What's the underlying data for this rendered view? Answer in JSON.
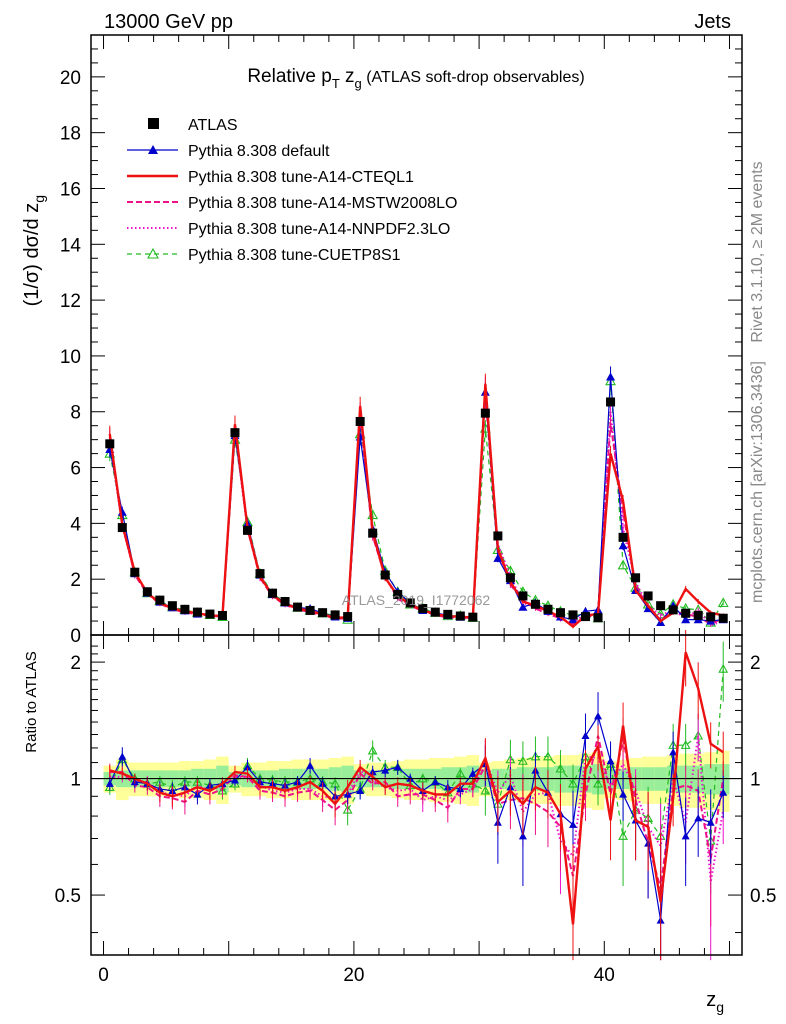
{
  "header": {
    "left": "13000 GeV pp",
    "right": "Jets"
  },
  "side": {
    "rivet": "Rivet 3.1.10, ≥ 2M events",
    "mcplots": "mcplots.cern.ch [arXiv:1306.3436]"
  },
  "watermark": "ATLAS_2019_I1772062",
  "colors": {
    "atlas": "#000000",
    "default": "#0000cc",
    "cteql1": "#ee1111",
    "mstw": "#ee1188",
    "nnpdf": "#ee11cc",
    "cuetp": "#22bb22",
    "band_inner": "#99ee99",
    "band_outer": "#ffff99"
  },
  "chart_data": [
    {
      "type": "line",
      "title_parts": {
        "main": "Relative p",
        "sub": "T",
        "mid": " z",
        "sub2": "g",
        "rest": " (ATLAS soft-drop observables)"
      },
      "ylabel": "(1/σ) dσ/d z",
      "ylabel_sub": "g",
      "xlim": [
        -1,
        51
      ],
      "ylim": [
        0,
        21.5
      ],
      "yticks": [
        0,
        2,
        4,
        6,
        8,
        10,
        12,
        14,
        16,
        18,
        20
      ],
      "x": [
        0.5,
        1.5,
        2.5,
        3.5,
        4.5,
        5.5,
        6.5,
        7.5,
        8.5,
        9.5,
        10.5,
        11.5,
        12.5,
        13.5,
        14.5,
        15.5,
        16.5,
        17.5,
        18.5,
        19.5,
        20.5,
        21.5,
        22.5,
        23.5,
        24.5,
        25.5,
        26.5,
        27.5,
        28.5,
        29.5,
        30.5,
        31.5,
        32.5,
        33.5,
        34.5,
        35.5,
        36.5,
        37.5,
        38.5,
        39.5,
        40.5,
        41.5,
        42.5,
        43.5,
        44.5,
        45.5,
        46.5,
        47.5,
        48.5,
        49.5
      ],
      "series": [
        {
          "name": "ATLAS",
          "key": "atlas",
          "style": "marker-square",
          "values": [
            6.85,
            3.85,
            2.25,
            1.55,
            1.25,
            1.05,
            0.92,
            0.82,
            0.75,
            0.7,
            7.25,
            3.75,
            2.2,
            1.5,
            1.2,
            1.0,
            0.88,
            0.8,
            0.72,
            0.66,
            7.65,
            3.65,
            2.15,
            1.45,
            1.15,
            0.95,
            0.82,
            0.74,
            0.68,
            0.64,
            7.95,
            3.55,
            2.05,
            1.4,
            1.1,
            0.92,
            0.8,
            0.72,
            0.66,
            0.62,
            8.35,
            3.5,
            2.05,
            1.4,
            1.05,
            0.9,
            0.78,
            0.7,
            0.65,
            0.6
          ]
        },
        {
          "name": "Pythia 8.308 default",
          "key": "default",
          "style": "solid-triangle",
          "values": [
            6.65,
            4.4,
            2.2,
            1.5,
            1.18,
            0.98,
            0.87,
            0.75,
            0.72,
            0.68,
            7.15,
            4.0,
            2.15,
            1.45,
            1.15,
            0.98,
            0.95,
            0.78,
            0.65,
            0.6,
            7.1,
            3.8,
            2.25,
            1.55,
            1.15,
            0.88,
            0.8,
            0.7,
            0.64,
            0.66,
            8.7,
            2.75,
            1.95,
            1.0,
            1.15,
            0.85,
            0.65,
            0.55,
            0.85,
            0.9,
            9.25,
            3.2,
            1.6,
            0.95,
            0.45,
            1.05,
            0.55,
            0.55,
            0.5,
            0.55
          ]
        },
        {
          "name": "Pythia 8.308 tune-A14-CTEQL1",
          "key": "cteql1",
          "style": "solid",
          "values": [
            7.2,
            3.95,
            2.25,
            1.5,
            1.15,
            0.95,
            0.85,
            0.78,
            0.7,
            0.68,
            7.55,
            3.85,
            2.1,
            1.42,
            1.12,
            0.95,
            0.86,
            0.74,
            0.62,
            0.63,
            8.2,
            3.7,
            2.05,
            1.4,
            1.1,
            0.88,
            0.75,
            0.67,
            0.66,
            0.62,
            9.0,
            3.1,
            1.9,
            1.2,
            1.05,
            0.85,
            0.65,
            0.3,
            0.7,
            0.75,
            6.5,
            4.8,
            1.6,
            1.05,
            0.5,
            0.8,
            1.65,
            1.2,
            0.8,
            0.7
          ]
        },
        {
          "name": "Pythia 8.308 tune-A14-MSTW2008LO",
          "key": "mstw",
          "style": "dashed",
          "values": [
            7.1,
            4.0,
            2.15,
            1.48,
            1.12,
            0.93,
            0.8,
            0.76,
            0.68,
            0.66,
            7.4,
            3.8,
            2.05,
            1.38,
            1.08,
            0.92,
            0.82,
            0.7,
            0.6,
            0.58,
            7.9,
            3.55,
            2.1,
            1.3,
            1.05,
            0.86,
            0.72,
            0.62,
            0.64,
            0.6,
            8.6,
            3.05,
            1.8,
            1.25,
            0.95,
            0.75,
            0.6,
            0.4,
            0.6,
            0.8,
            7.6,
            4.4,
            1.8,
            0.95,
            0.55,
            0.85,
            0.75,
            0.65,
            0.4,
            0.6
          ]
        },
        {
          "name": "Pythia 8.308 tune-A14-NNPDF2.3LO",
          "key": "nnpdf",
          "style": "dotted",
          "values": [
            6.95,
            3.9,
            2.2,
            1.52,
            1.15,
            0.96,
            0.83,
            0.79,
            0.7,
            0.67,
            7.3,
            3.78,
            2.12,
            1.4,
            1.1,
            0.94,
            0.83,
            0.72,
            0.64,
            0.6,
            8.0,
            3.6,
            2.05,
            1.35,
            1.08,
            0.84,
            0.74,
            0.65,
            0.62,
            0.6,
            8.9,
            3.25,
            2.1,
            1.15,
            1.0,
            0.85,
            0.55,
            0.45,
            0.75,
            0.7,
            8.0,
            3.8,
            1.9,
            1.05,
            0.7,
            0.9,
            0.6,
            0.9,
            0.35,
            0.5
          ]
        },
        {
          "name": "Pythia 8.308 tune-CUETP8S1",
          "key": "cuetp",
          "style": "dashed-opentriangle",
          "values": [
            6.5,
            4.3,
            2.25,
            1.5,
            1.22,
            1.0,
            0.9,
            0.8,
            0.72,
            0.65,
            7.0,
            4.05,
            2.2,
            1.48,
            1.18,
            0.98,
            0.88,
            0.78,
            0.7,
            0.55,
            7.2,
            4.3,
            2.3,
            1.55,
            1.1,
            0.95,
            0.8,
            0.68,
            0.7,
            0.62,
            7.4,
            3.05,
            2.3,
            1.55,
            1.25,
            1.05,
            0.85,
            0.7,
            0.75,
            0.6,
            9.1,
            2.5,
            1.7,
            1.1,
            0.75,
            1.1,
            0.95,
            0.9,
            0.45,
            1.15
          ]
        }
      ]
    },
    {
      "type": "line",
      "ylabel": "Ratio to ATLAS",
      "xlabel": "z",
      "xlabel_sub": "g",
      "xlim": [
        -1,
        51
      ],
      "ylim": [
        0.35,
        2.35
      ],
      "yscale": "log",
      "yticks": [
        0.5,
        1,
        2
      ],
      "xticks": [
        0,
        20,
        40
      ],
      "ref": 1,
      "band_inner": [
        0.04,
        0.05,
        0.05,
        0.05,
        0.05,
        0.05,
        0.05,
        0.06,
        0.06,
        0.08,
        0.04,
        0.05,
        0.05,
        0.05,
        0.06,
        0.06,
        0.06,
        0.06,
        0.07,
        0.08,
        0.05,
        0.05,
        0.05,
        0.06,
        0.06,
        0.06,
        0.06,
        0.07,
        0.07,
        0.08,
        0.05,
        0.06,
        0.06,
        0.07,
        0.07,
        0.07,
        0.08,
        0.08,
        0.08,
        0.09,
        0.06,
        0.06,
        0.07,
        0.07,
        0.07,
        0.08,
        0.08,
        0.08,
        0.09,
        0.09
      ],
      "band_outer": [
        0.08,
        0.12,
        0.1,
        0.1,
        0.1,
        0.1,
        0.11,
        0.11,
        0.12,
        0.14,
        0.08,
        0.1,
        0.1,
        0.11,
        0.11,
        0.12,
        0.12,
        0.12,
        0.13,
        0.14,
        0.09,
        0.1,
        0.1,
        0.11,
        0.12,
        0.12,
        0.13,
        0.13,
        0.14,
        0.15,
        0.1,
        0.11,
        0.12,
        0.13,
        0.14,
        0.14,
        0.15,
        0.15,
        0.16,
        0.17,
        0.11,
        0.12,
        0.13,
        0.14,
        0.14,
        0.15,
        0.16,
        0.16,
        0.17,
        0.18
      ],
      "series": [
        {
          "key": "default",
          "values": [
            0.97,
            1.14,
            0.98,
            0.97,
            0.94,
            0.93,
            0.95,
            0.91,
            0.96,
            0.97,
            0.99,
            1.07,
            0.98,
            0.97,
            0.96,
            0.98,
            1.08,
            0.97,
            0.9,
            0.91,
            0.93,
            1.04,
            1.05,
            1.07,
            1.0,
            0.93,
            0.98,
            0.95,
            0.94,
            1.03,
            1.09,
            0.77,
            0.95,
            0.71,
            1.05,
            0.92,
            0.81,
            0.76,
            1.29,
            1.45,
            1.11,
            0.91,
            0.78,
            0.68,
            0.43,
            1.17,
            0.71,
            0.79,
            0.77,
            0.92
          ]
        },
        {
          "key": "cteql1",
          "values": [
            1.05,
            1.03,
            1.0,
            0.97,
            0.92,
            0.9,
            0.92,
            0.95,
            0.93,
            0.97,
            1.04,
            1.03,
            0.95,
            0.95,
            0.93,
            0.95,
            0.98,
            0.93,
            0.86,
            0.95,
            1.07,
            1.01,
            0.95,
            0.97,
            0.96,
            0.93,
            0.91,
            0.91,
            0.97,
            0.97,
            1.13,
            0.87,
            0.93,
            0.86,
            0.95,
            0.92,
            0.81,
            0.42,
            1.06,
            1.21,
            0.78,
            1.37,
            0.78,
            0.75,
            0.48,
            0.89,
            2.12,
            1.71,
            1.23,
            1.17
          ]
        },
        {
          "key": "mstw",
          "values": [
            1.04,
            1.04,
            0.96,
            0.95,
            0.9,
            0.89,
            0.87,
            0.93,
            0.91,
            0.94,
            1.02,
            1.01,
            0.93,
            0.92,
            0.9,
            0.92,
            0.93,
            0.88,
            0.83,
            0.88,
            1.03,
            0.97,
            0.98,
            0.9,
            0.91,
            0.91,
            0.88,
            0.84,
            0.94,
            0.94,
            1.08,
            0.86,
            0.88,
            0.89,
            0.86,
            0.82,
            0.75,
            0.56,
            0.91,
            1.29,
            0.91,
            1.26,
            0.88,
            0.68,
            0.52,
            0.94,
            0.96,
            0.93,
            0.62,
            1.0
          ]
        },
        {
          "key": "nnpdf",
          "values": [
            1.01,
            1.01,
            0.98,
            0.98,
            0.92,
            0.91,
            0.9,
            0.96,
            0.93,
            0.96,
            1.01,
            1.01,
            0.96,
            0.93,
            0.92,
            0.94,
            0.94,
            0.9,
            0.89,
            0.91,
            1.05,
            0.99,
            0.95,
            0.93,
            0.94,
            0.88,
            0.9,
            0.88,
            0.91,
            0.94,
            1.12,
            0.92,
            1.02,
            0.82,
            0.91,
            0.92,
            0.69,
            0.63,
            1.14,
            1.13,
            0.96,
            1.09,
            0.93,
            0.75,
            0.67,
            1.0,
            0.77,
            1.29,
            0.54,
            0.83
          ]
        },
        {
          "key": "cuetp",
          "values": [
            0.95,
            1.12,
            1.0,
            0.97,
            0.98,
            0.95,
            0.98,
            0.98,
            0.96,
            0.93,
            0.97,
            1.08,
            1.0,
            0.99,
            0.98,
            0.98,
            1.0,
            0.98,
            0.97,
            0.83,
            0.94,
            1.18,
            1.07,
            1.07,
            0.96,
            1.0,
            0.98,
            0.92,
            1.03,
            0.97,
            0.93,
            0.86,
            1.12,
            1.11,
            1.14,
            1.14,
            1.06,
            0.97,
            1.14,
            0.97,
            1.09,
            0.71,
            0.83,
            0.79,
            0.71,
            1.22,
            1.22,
            1.29,
            0.69,
            1.92
          ]
        }
      ]
    }
  ]
}
